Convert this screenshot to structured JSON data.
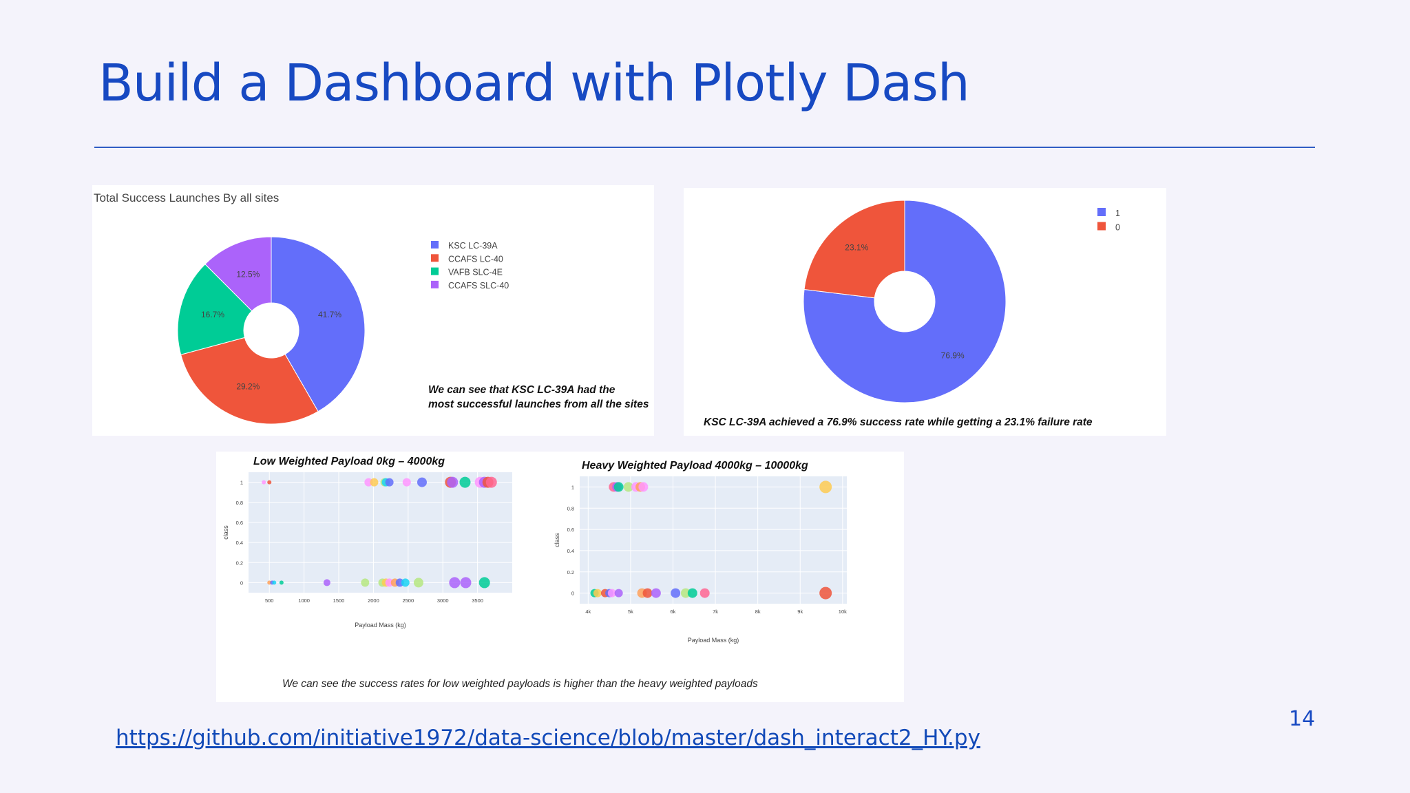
{
  "slide": {
    "title": "Build a Dashboard with Plotly Dash",
    "page_number": "14",
    "link_text": "https://github.com/initiative1972/data-science/blob/master/dash_interact2_HY.py"
  },
  "panel_a": {
    "caption_line1": "We can see that KSC LC-39A had the",
    "caption_line2": "most successful launches from all the sites"
  },
  "panel_b": {
    "caption": "KSC LC-39A achieved a 76.9% success rate while getting a 23.1% failure rate"
  },
  "panel_c": {
    "caption": "We can see the success rates for low weighted payloads is higher than the heavy weighted payloads"
  },
  "chart_data": [
    {
      "id": "sites-pie",
      "type": "pie",
      "title": "Total Success Launches By all sites",
      "hole": true,
      "legend_position": "right",
      "labels": [
        "KSC LC-39A",
        "CCAFS LC-40",
        "VAFB SLC-4E",
        "CCAFS SLC-40"
      ],
      "values": [
        41.7,
        29.2,
        16.7,
        12.5
      ],
      "text": [
        "41.7%",
        "29.2%",
        "16.7%",
        "12.5%"
      ],
      "colors": [
        "#636efa",
        "#ef553b",
        "#00cc96",
        "#ab63fa"
      ]
    },
    {
      "id": "ksc-pie",
      "type": "pie",
      "title": "",
      "hole": true,
      "legend_position": "top-right",
      "labels": [
        "1",
        "0"
      ],
      "values": [
        76.9,
        23.1
      ],
      "text": [
        "76.9%",
        "23.1%"
      ],
      "colors": [
        "#636efa",
        "#ef553b"
      ]
    },
    {
      "id": "low-payload-scatter",
      "type": "scatter",
      "title": "Low Weighted Payload 0kg – 4000kg",
      "xlabel": "Payload Mass (kg)",
      "ylabel": "class",
      "xlim": [
        200,
        4000
      ],
      "ylim": [
        -0.1,
        1.1
      ],
      "xticks": [
        500,
        1000,
        1500,
        2000,
        2500,
        3000,
        3500
      ],
      "xtick_labels": [
        "500",
        "1000",
        "1500",
        "2000",
        "2500",
        "3000",
        "3500"
      ],
      "yticks": [
        0,
        0.2,
        0.4,
        0.6,
        0.8,
        1
      ],
      "ytick_labels": [
        "0",
        "0.2",
        "0.4",
        "0.6",
        "0.8",
        "1"
      ],
      "points": [
        {
          "x": 420,
          "y": 1,
          "c": "#ff97ff",
          "s": 3
        },
        {
          "x": 500,
          "y": 1,
          "c": "#ef553b",
          "s": 3
        },
        {
          "x": 500,
          "y": 0,
          "c": "#ffa15a",
          "s": 3
        },
        {
          "x": 540,
          "y": 0,
          "c": "#636efa",
          "s": 3
        },
        {
          "x": 570,
          "y": 0,
          "c": "#19d3f3",
          "s": 3
        },
        {
          "x": 675,
          "y": 0,
          "c": "#00cc96",
          "s": 3
        },
        {
          "x": 1330,
          "y": 0,
          "c": "#ab63fa",
          "s": 5
        },
        {
          "x": 1930,
          "y": 1,
          "c": "#ff97ff",
          "s": 6
        },
        {
          "x": 2010,
          "y": 1,
          "c": "#fecb52",
          "s": 6
        },
        {
          "x": 2160,
          "y": 1,
          "c": "#b6e880",
          "s": 6
        },
        {
          "x": 2180,
          "y": 1,
          "c": "#19d3f3",
          "s": 6
        },
        {
          "x": 2230,
          "y": 1,
          "c": "#636efa",
          "s": 6
        },
        {
          "x": 2480,
          "y": 1,
          "c": "#ff97ff",
          "s": 6
        },
        {
          "x": 2700,
          "y": 1,
          "c": "#636efa",
          "s": 7
        },
        {
          "x": 1880,
          "y": 0,
          "c": "#b6e880",
          "s": 6
        },
        {
          "x": 2130,
          "y": 0,
          "c": "#b6e880",
          "s": 6
        },
        {
          "x": 2180,
          "y": 0,
          "c": "#fecb52",
          "s": 6
        },
        {
          "x": 2230,
          "y": 0,
          "c": "#ff97ff",
          "s": 6
        },
        {
          "x": 2310,
          "y": 0,
          "c": "#ffa15a",
          "s": 6
        },
        {
          "x": 2380,
          "y": 0,
          "c": "#636efa",
          "s": 6
        },
        {
          "x": 2460,
          "y": 0,
          "c": "#19d3f3",
          "s": 6
        },
        {
          "x": 2650,
          "y": 0,
          "c": "#b6e880",
          "s": 7
        },
        {
          "x": 3110,
          "y": 1,
          "c": "#ef553b",
          "s": 8
        },
        {
          "x": 3140,
          "y": 1,
          "c": "#ab63fa",
          "s": 8
        },
        {
          "x": 3320,
          "y": 1,
          "c": "#00cc96",
          "s": 8
        },
        {
          "x": 3540,
          "y": 1,
          "c": "#ff97ff",
          "s": 8
        },
        {
          "x": 3600,
          "y": 1,
          "c": "#ab63fa",
          "s": 8
        },
        {
          "x": 3650,
          "y": 1,
          "c": "#ef553b",
          "s": 8
        },
        {
          "x": 3700,
          "y": 1,
          "c": "#ff6692",
          "s": 8
        },
        {
          "x": 3170,
          "y": 0,
          "c": "#ab63fa",
          "s": 8
        },
        {
          "x": 3330,
          "y": 0,
          "c": "#ab63fa",
          "s": 8
        },
        {
          "x": 3600,
          "y": 0,
          "c": "#00cc96",
          "s": 8
        }
      ]
    },
    {
      "id": "heavy-payload-scatter",
      "type": "scatter",
      "title": "Heavy Weighted Payload 4000kg – 10000kg",
      "xlabel": "Payload Mass (kg)",
      "ylabel": "class",
      "xlim": [
        3800,
        10100
      ],
      "ylim": [
        -0.1,
        1.1
      ],
      "xticks": [
        4000,
        5000,
        6000,
        7000,
        8000,
        9000,
        10000
      ],
      "xtick_labels": [
        "4k",
        "5k",
        "6k",
        "7k",
        "8k",
        "9k",
        "10k"
      ],
      "yticks": [
        0,
        0.2,
        0.4,
        0.6,
        0.8,
        1
      ],
      "ytick_labels": [
        "0",
        "0.2",
        "0.4",
        "0.6",
        "0.8",
        "1"
      ],
      "points": [
        {
          "x": 4600,
          "y": 1,
          "c": "#ff6692",
          "s": 7
        },
        {
          "x": 4680,
          "y": 1,
          "c": "#ab63fa",
          "s": 7
        },
        {
          "x": 4720,
          "y": 1,
          "c": "#00cc96",
          "s": 7
        },
        {
          "x": 4950,
          "y": 1,
          "c": "#b6e880",
          "s": 7
        },
        {
          "x": 5130,
          "y": 1,
          "c": "#ff97ff",
          "s": 7
        },
        {
          "x": 5230,
          "y": 1,
          "c": "#ffa15a",
          "s": 7
        },
        {
          "x": 5300,
          "y": 1,
          "c": "#ff97ff",
          "s": 7
        },
        {
          "x": 9600,
          "y": 1,
          "c": "#fecb52",
          "s": 9
        },
        {
          "x": 4150,
          "y": 0,
          "c": "#00cc96",
          "s": 6
        },
        {
          "x": 4220,
          "y": 0,
          "c": "#fecb52",
          "s": 6
        },
        {
          "x": 4400,
          "y": 0,
          "c": "#ef553b",
          "s": 6
        },
        {
          "x": 4500,
          "y": 0,
          "c": "#636efa",
          "s": 6
        },
        {
          "x": 4560,
          "y": 0,
          "c": "#ff97ff",
          "s": 6
        },
        {
          "x": 4720,
          "y": 0,
          "c": "#ab63fa",
          "s": 6
        },
        {
          "x": 5270,
          "y": 0,
          "c": "#ffa15a",
          "s": 7
        },
        {
          "x": 5400,
          "y": 0,
          "c": "#ef553b",
          "s": 7
        },
        {
          "x": 5600,
          "y": 0,
          "c": "#ab63fa",
          "s": 7
        },
        {
          "x": 6060,
          "y": 0,
          "c": "#636efa",
          "s": 7
        },
        {
          "x": 6300,
          "y": 0,
          "c": "#b6e880",
          "s": 7
        },
        {
          "x": 6460,
          "y": 0,
          "c": "#00cc96",
          "s": 7
        },
        {
          "x": 6750,
          "y": 0,
          "c": "#ff6692",
          "s": 7
        },
        {
          "x": 9600,
          "y": 0,
          "c": "#ef553b",
          "s": 9
        }
      ]
    }
  ]
}
